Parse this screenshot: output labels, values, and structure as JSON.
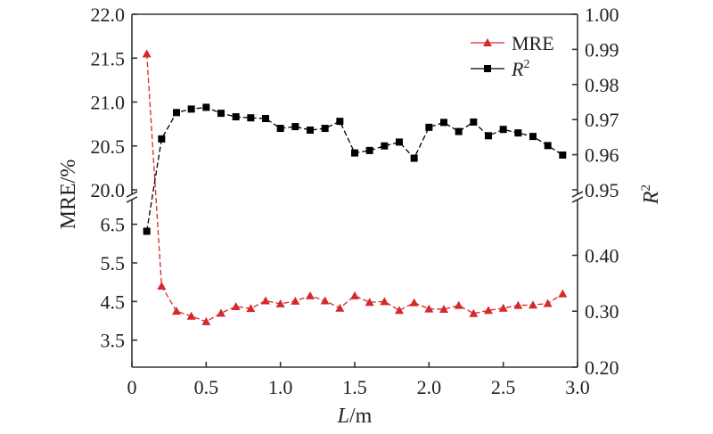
{
  "chart_data": {
    "type": "line",
    "xlabel_main": "L",
    "xlabel_unit": "/m",
    "ylabel_left": "MRE/%",
    "ylabel_right_base": "R",
    "ylabel_right_sup": "2",
    "xlim": [
      0,
      3.0
    ],
    "xticks": [
      "0",
      "0.5",
      "1.0",
      "1.5",
      "2.0",
      "2.5",
      "3.0"
    ],
    "xtick_values": [
      0,
      0.5,
      1.0,
      1.5,
      2.0,
      2.5,
      3.0
    ],
    "left_axis": {
      "upper_range": [
        20.0,
        22.0
      ],
      "upper_ticks": [
        "20.0",
        "20.5",
        "21.0",
        "21.5",
        "22.0"
      ],
      "upper_tick_values": [
        20.0,
        20.5,
        21.0,
        21.5,
        22.0
      ],
      "lower_range": [
        2.8,
        7.0
      ],
      "lower_ticks": [
        "3.5",
        "4.5",
        "5.5",
        "6.5"
      ],
      "lower_tick_values": [
        3.5,
        4.5,
        5.5,
        6.5
      ]
    },
    "right_axis": {
      "upper_range": [
        0.95,
        1.0
      ],
      "upper_ticks": [
        "0.95",
        "0.96",
        "0.97",
        "0.98",
        "0.99",
        "1.00"
      ],
      "upper_tick_values": [
        0.95,
        0.96,
        0.97,
        0.98,
        0.99,
        1.0
      ],
      "lower_range": [
        0.2,
        0.49
      ],
      "lower_ticks": [
        "0.20",
        "0.30",
        "0.40"
      ],
      "lower_tick_values": [
        0.2,
        0.3,
        0.4
      ]
    },
    "x": [
      0.1,
      0.2,
      0.3,
      0.4,
      0.5,
      0.6,
      0.7,
      0.8,
      0.9,
      1.0,
      1.1,
      1.2,
      1.3,
      1.4,
      1.5,
      1.6,
      1.7,
      1.8,
      1.9,
      2.0,
      2.1,
      2.2,
      2.3,
      2.4,
      2.5,
      2.6,
      2.7,
      2.8,
      2.9
    ],
    "series": [
      {
        "name": "MRE",
        "axis": "left",
        "marker": "triangle",
        "color": "#d42a2a",
        "values": [
          21.55,
          4.9,
          4.25,
          4.12,
          3.98,
          4.2,
          4.37,
          4.32,
          4.52,
          4.44,
          4.51,
          4.65,
          4.52,
          4.33,
          4.65,
          4.48,
          4.5,
          4.27,
          4.47,
          4.31,
          4.3,
          4.4,
          4.19,
          4.27,
          4.33,
          4.4,
          4.41,
          4.45,
          4.7
        ]
      },
      {
        "name_base": "R",
        "name_sup": "2",
        "axis": "right",
        "marker": "square",
        "color": "#000000",
        "values": [
          0.443,
          0.9645,
          0.972,
          0.973,
          0.9735,
          0.9718,
          0.9708,
          0.9705,
          0.9703,
          0.9675,
          0.968,
          0.967,
          0.9675,
          0.9695,
          0.9605,
          0.9612,
          0.9625,
          0.9636,
          0.959,
          0.9678,
          0.9692,
          0.9666,
          0.9693,
          0.9654,
          0.9672,
          0.9662,
          0.9652,
          0.9626,
          0.9599
        ]
      }
    ],
    "legend_position": "top-right",
    "grid": false
  }
}
